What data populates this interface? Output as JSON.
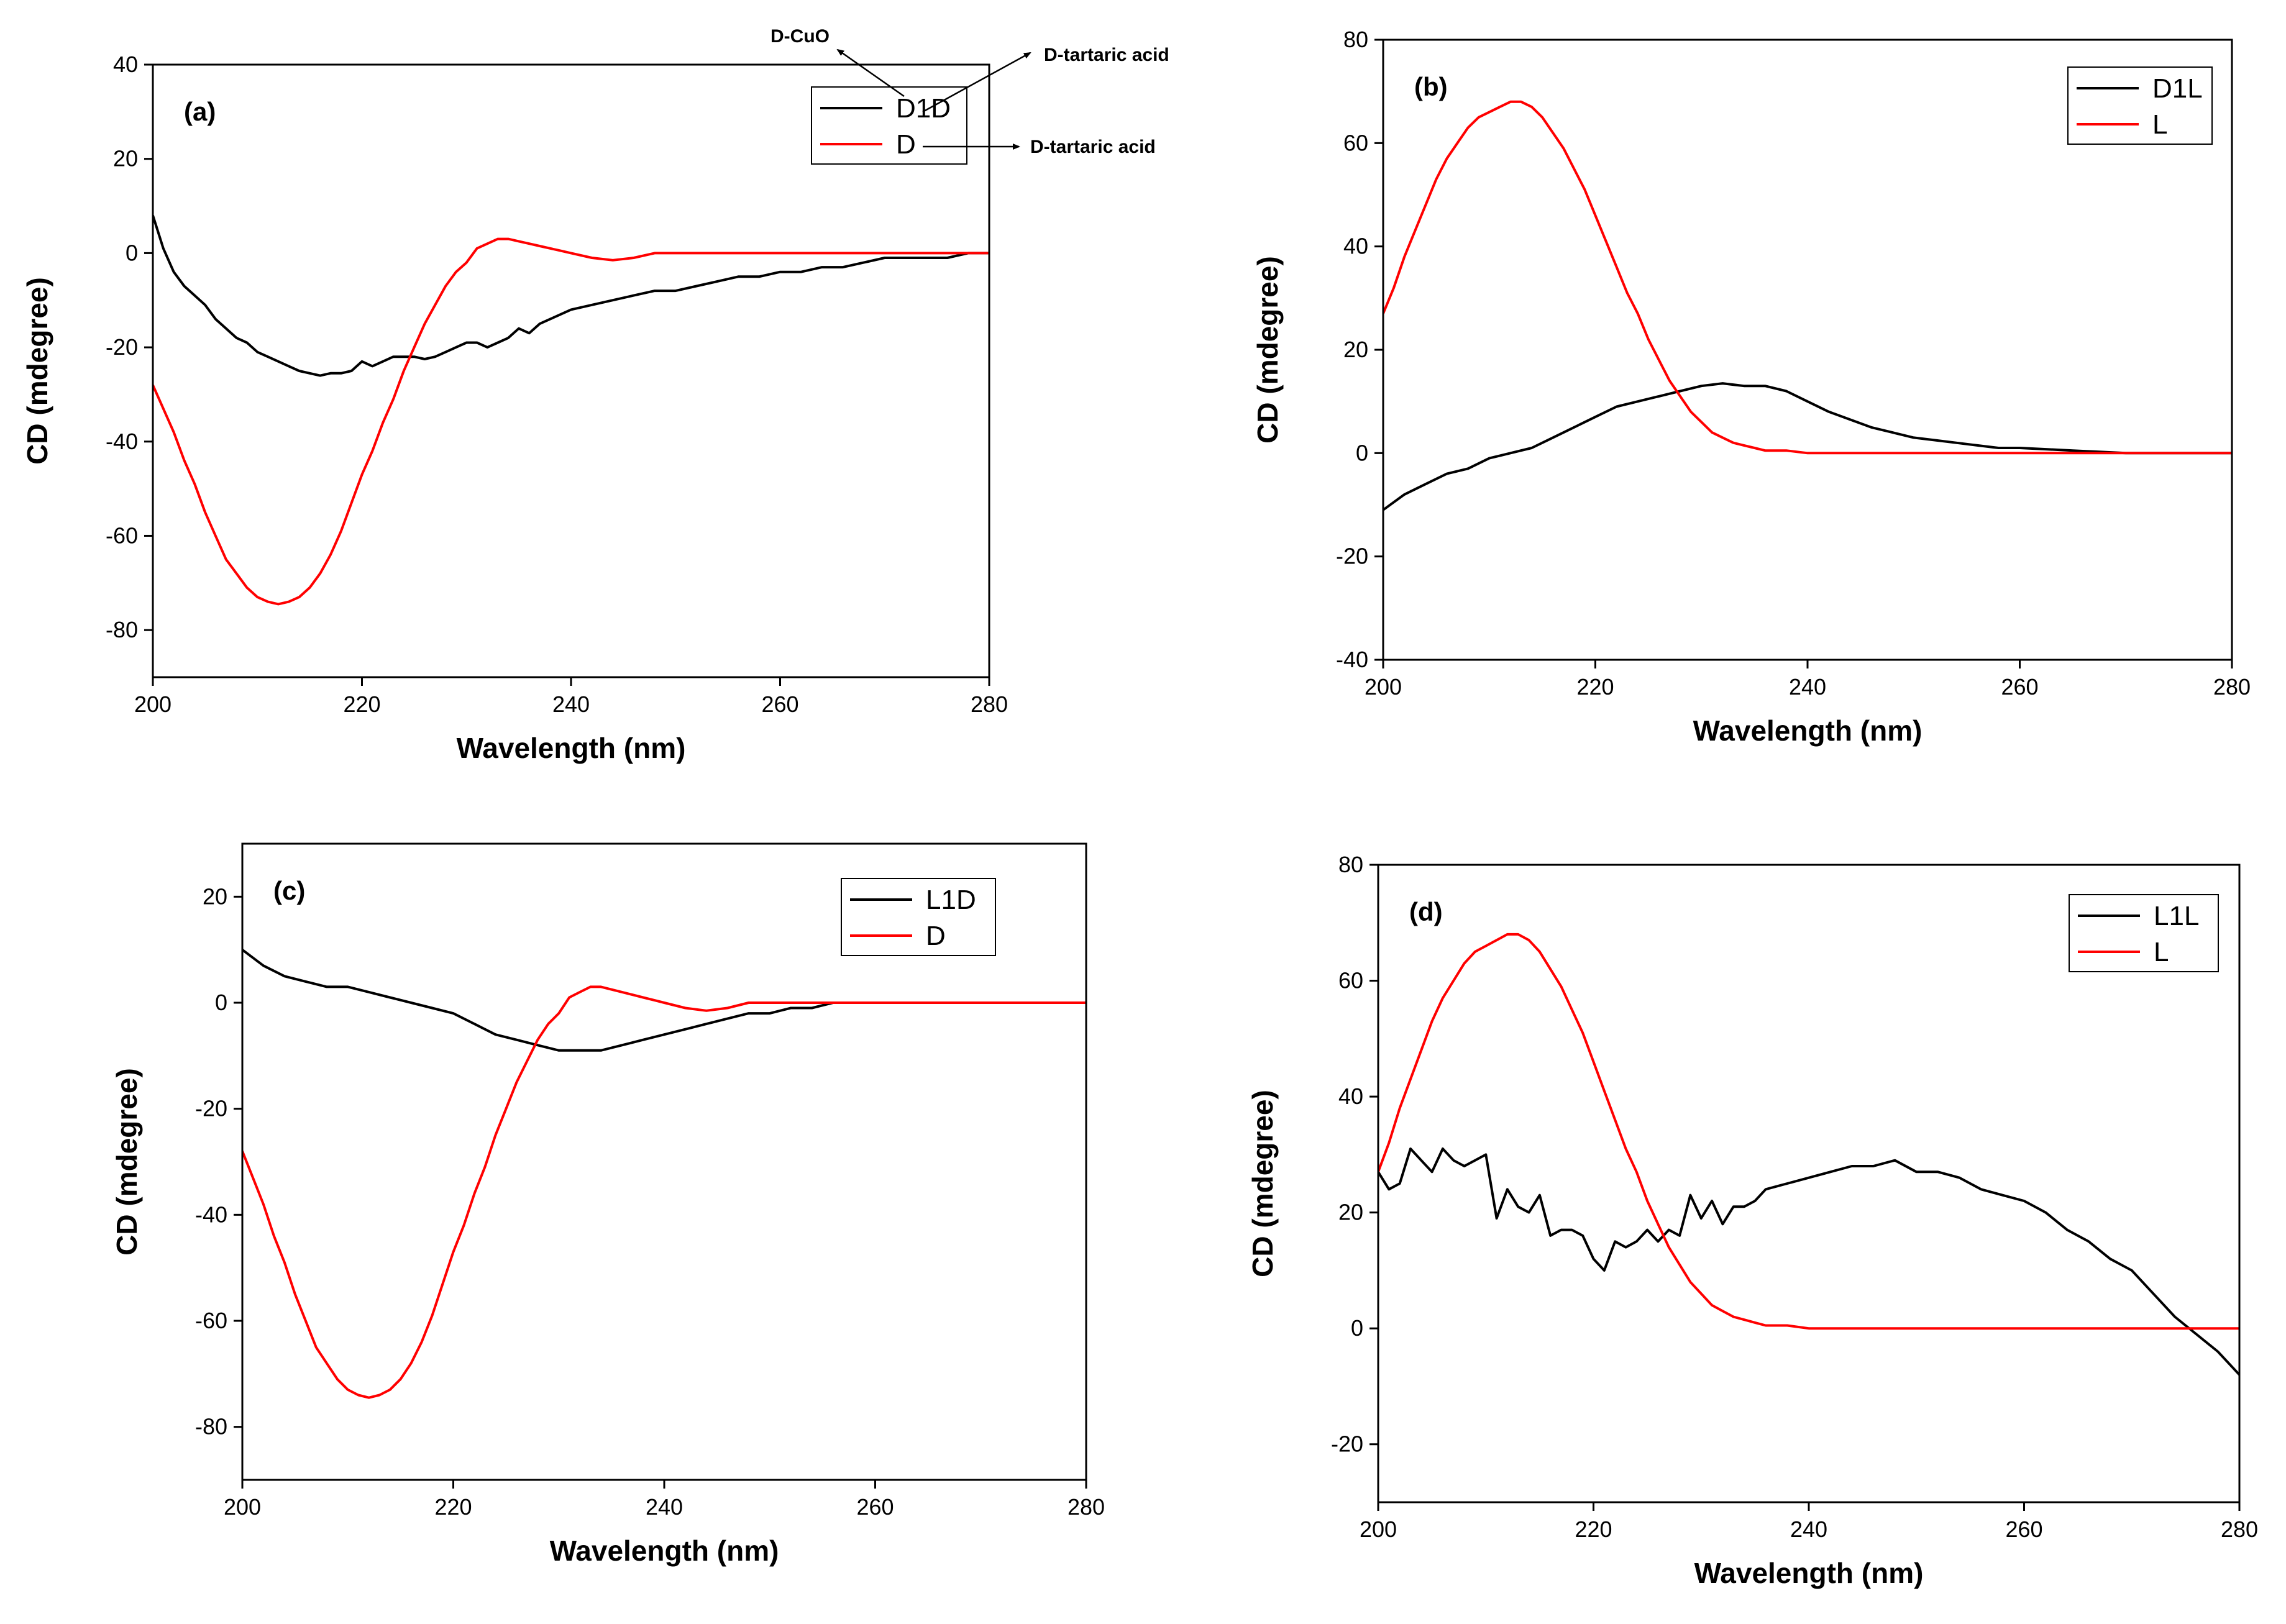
{
  "chart_data": [
    {
      "panel": "(a)",
      "type": "line",
      "xlabel": "Wavelength (nm)",
      "ylabel": "CD (mdegree)",
      "xlim": [
        200,
        280
      ],
      "ylim": [
        -90,
        40
      ],
      "xticks": [
        200,
        220,
        240,
        260,
        280
      ],
      "yticks": [
        40,
        20,
        0,
        -20,
        -40,
        -60,
        -80
      ],
      "legend_position": "top-right",
      "series": [
        {
          "name": "D1D",
          "color": "#000000",
          "x": [
            200,
            201,
            202,
            203,
            204,
            205,
            206,
            207,
            208,
            209,
            210,
            211,
            212,
            213,
            214,
            215,
            216,
            217,
            218,
            219,
            220,
            221,
            222,
            223,
            224,
            225,
            226,
            227,
            228,
            229,
            230,
            231,
            232,
            233,
            234,
            235,
            236,
            237,
            238,
            240,
            242,
            244,
            246,
            248,
            250,
            252,
            254,
            256,
            258,
            260,
            262,
            264,
            266,
            268,
            270,
            272,
            274,
            276,
            278,
            280
          ],
          "y": [
            8,
            1,
            -4,
            -7,
            -9,
            -11,
            -14,
            -16,
            -18,
            -19,
            -21,
            -22,
            -23,
            -24,
            -25,
            -25.5,
            -26,
            -25.5,
            -25.5,
            -25,
            -23,
            -24,
            -23,
            -22,
            -22,
            -22,
            -22.5,
            -22,
            -21,
            -20,
            -19,
            -19,
            -20,
            -19,
            -18,
            -16,
            -17,
            -15,
            -14,
            -12,
            -11,
            -10,
            -9,
            -8,
            -8,
            -7,
            -6,
            -5,
            -5,
            -4,
            -4,
            -3,
            -3,
            -2,
            -1,
            -1,
            -1,
            -1,
            0,
            0
          ]
        },
        {
          "name": "D",
          "color": "#ff0000",
          "x": [
            200,
            201,
            202,
            203,
            204,
            205,
            206,
            207,
            208,
            209,
            210,
            211,
            212,
            213,
            214,
            215,
            216,
            217,
            218,
            219,
            220,
            221,
            222,
            223,
            224,
            225,
            226,
            227,
            228,
            229,
            230,
            231,
            232,
            233,
            234,
            235,
            236,
            237,
            238,
            239,
            240,
            242,
            244,
            246,
            248,
            250,
            255,
            260,
            265,
            270,
            275,
            280
          ],
          "y": [
            -28,
            -33,
            -38,
            -44,
            -49,
            -55,
            -60,
            -65,
            -68,
            -71,
            -73,
            -74,
            -74.5,
            -74,
            -73,
            -71,
            -68,
            -64,
            -59,
            -53,
            -47,
            -42,
            -36,
            -31,
            -25,
            -20,
            -15,
            -11,
            -7,
            -4,
            -2,
            1,
            2,
            3,
            3,
            2.5,
            2,
            1.5,
            1,
            0.5,
            0,
            -1,
            -1.5,
            -1,
            0,
            0,
            0,
            0,
            0,
            0,
            0,
            0
          ]
        }
      ],
      "annotations": [
        {
          "text": "D-CuO"
        },
        {
          "text": "D-tartaric acid"
        },
        {
          "text": "D-tartaric acid"
        }
      ]
    },
    {
      "panel": "(b)",
      "type": "line",
      "xlabel": "Wavelength (nm)",
      "ylabel": "CD (mdegree)",
      "xlim": [
        200,
        280
      ],
      "ylim": [
        -40,
        80
      ],
      "xticks": [
        200,
        220,
        240,
        260,
        280
      ],
      "yticks": [
        80,
        60,
        40,
        20,
        0,
        -20,
        -40
      ],
      "legend_position": "top-right",
      "series": [
        {
          "name": "D1L",
          "color": "#000000",
          "x": [
            200,
            202,
            204,
            206,
            208,
            210,
            212,
            214,
            216,
            218,
            220,
            222,
            224,
            226,
            228,
            230,
            232,
            234,
            236,
            238,
            240,
            242,
            244,
            246,
            248,
            250,
            252,
            254,
            256,
            258,
            260,
            265,
            270,
            275,
            280
          ],
          "y": [
            -11,
            -8,
            -6,
            -4,
            -3,
            -1,
            0,
            1,
            3,
            5,
            7,
            9,
            10,
            11,
            12,
            13,
            13.5,
            13,
            13,
            12,
            10,
            8,
            6.5,
            5,
            4,
            3,
            2.5,
            2,
            1.5,
            1,
            1,
            0.5,
            0,
            0,
            0
          ]
        },
        {
          "name": "L",
          "color": "#ff0000",
          "x": [
            200,
            201,
            202,
            203,
            204,
            205,
            206,
            207,
            208,
            209,
            210,
            211,
            212,
            213,
            214,
            215,
            216,
            217,
            218,
            219,
            220,
            221,
            222,
            223,
            224,
            225,
            226,
            227,
            228,
            229,
            230,
            231,
            232,
            233,
            234,
            235,
            236,
            237,
            238,
            240,
            242,
            245,
            250,
            255,
            260,
            265,
            270,
            275,
            280
          ],
          "y": [
            27,
            32,
            38,
            43,
            48,
            53,
            57,
            60,
            63,
            65,
            66,
            67,
            68,
            68,
            67,
            65,
            62,
            59,
            55,
            51,
            46,
            41,
            36,
            31,
            27,
            22,
            18,
            14,
            11,
            8,
            6,
            4,
            3,
            2,
            1.5,
            1,
            0.5,
            0.5,
            0.5,
            0,
            0,
            0,
            0,
            0,
            0,
            0,
            0,
            0,
            0
          ]
        }
      ]
    },
    {
      "panel": "(c)",
      "type": "line",
      "xlabel": "Wavelength (nm)",
      "ylabel": "CD (mdegree)",
      "xlim": [
        200,
        280
      ],
      "ylim": [
        -90,
        30
      ],
      "xticks": [
        200,
        220,
        240,
        260,
        280
      ],
      "yticks": [
        20,
        0,
        -20,
        -40,
        -60,
        -80
      ],
      "legend_position": "top-right",
      "series": [
        {
          "name": "L1D",
          "color": "#000000",
          "x": [
            200,
            202,
            204,
            206,
            208,
            210,
            212,
            214,
            216,
            218,
            220,
            222,
            224,
            226,
            228,
            230,
            232,
            234,
            236,
            238,
            240,
            242,
            244,
            246,
            248,
            250,
            252,
            254,
            256,
            258,
            260,
            265,
            270,
            275,
            280
          ],
          "y": [
            10,
            7,
            5,
            4,
            3,
            3,
            2,
            1,
            0,
            -1,
            -2,
            -4,
            -6,
            -7,
            -8,
            -9,
            -9,
            -9,
            -8,
            -7,
            -6,
            -5,
            -4,
            -3,
            -2,
            -2,
            -1,
            -1,
            0,
            0,
            0,
            0,
            0,
            0,
            0
          ]
        },
        {
          "name": "D",
          "color": "#ff0000",
          "x": [
            200,
            201,
            202,
            203,
            204,
            205,
            206,
            207,
            208,
            209,
            210,
            211,
            212,
            213,
            214,
            215,
            216,
            217,
            218,
            219,
            220,
            221,
            222,
            223,
            224,
            225,
            226,
            227,
            228,
            229,
            230,
            231,
            232,
            233,
            234,
            235,
            236,
            237,
            238,
            239,
            240,
            242,
            244,
            246,
            248,
            250,
            255,
            260,
            265,
            270,
            275,
            280
          ],
          "y": [
            -28,
            -33,
            -38,
            -44,
            -49,
            -55,
            -60,
            -65,
            -68,
            -71,
            -73,
            -74,
            -74.5,
            -74,
            -73,
            -71,
            -68,
            -64,
            -59,
            -53,
            -47,
            -42,
            -36,
            -31,
            -25,
            -20,
            -15,
            -11,
            -7,
            -4,
            -2,
            1,
            2,
            3,
            3,
            2.5,
            2,
            1.5,
            1,
            0.5,
            0,
            -1,
            -1.5,
            -1,
            0,
            0,
            0,
            0,
            0,
            0,
            0,
            0
          ]
        }
      ]
    },
    {
      "panel": "(d)",
      "type": "line",
      "xlabel": "Wavelength (nm)",
      "ylabel": "CD (mdegree)",
      "xlim": [
        200,
        280
      ],
      "ylim": [
        -30,
        80
      ],
      "xticks": [
        200,
        220,
        240,
        260,
        280
      ],
      "yticks": [
        80,
        60,
        40,
        20,
        0,
        -20
      ],
      "legend_position": "top-right",
      "series": [
        {
          "name": "L1L",
          "color": "#000000",
          "x": [
            200,
            201,
            202,
            203,
            204,
            205,
            206,
            207,
            208,
            209,
            210,
            211,
            212,
            213,
            214,
            215,
            216,
            217,
            218,
            219,
            220,
            221,
            222,
            223,
            224,
            225,
            226,
            227,
            228,
            229,
            230,
            231,
            232,
            233,
            234,
            235,
            236,
            238,
            240,
            242,
            244,
            246,
            248,
            250,
            252,
            254,
            256,
            258,
            260,
            262,
            264,
            266,
            268,
            270,
            272,
            274,
            276,
            278,
            280
          ],
          "y": [
            27,
            24,
            25,
            31,
            29,
            27,
            31,
            29,
            28,
            29,
            30,
            19,
            24,
            21,
            20,
            23,
            16,
            17,
            17,
            16,
            12,
            10,
            15,
            14,
            15,
            17,
            15,
            17,
            16,
            23,
            19,
            22,
            18,
            21,
            21,
            22,
            24,
            25,
            26,
            27,
            28,
            28,
            29,
            27,
            27,
            26,
            24,
            23,
            22,
            20,
            17,
            15,
            12,
            10,
            6,
            2,
            -1,
            -4,
            -8
          ]
        },
        {
          "name": "L",
          "color": "#ff0000",
          "x": [
            200,
            201,
            202,
            203,
            204,
            205,
            206,
            207,
            208,
            209,
            210,
            211,
            212,
            213,
            214,
            215,
            216,
            217,
            218,
            219,
            220,
            221,
            222,
            223,
            224,
            225,
            226,
            227,
            228,
            229,
            230,
            231,
            232,
            233,
            234,
            235,
            236,
            237,
            238,
            240,
            242,
            245,
            250,
            255,
            260,
            265,
            270,
            275,
            280
          ],
          "y": [
            27,
            32,
            38,
            43,
            48,
            53,
            57,
            60,
            63,
            65,
            66,
            67,
            68,
            68,
            67,
            65,
            62,
            59,
            55,
            51,
            46,
            41,
            36,
            31,
            27,
            22,
            18,
            14,
            11,
            8,
            6,
            4,
            3,
            2,
            1.5,
            1,
            0.5,
            0.5,
            0.5,
            0,
            0,
            0,
            0,
            0,
            0,
            0,
            0,
            0,
            0
          ]
        }
      ]
    }
  ]
}
